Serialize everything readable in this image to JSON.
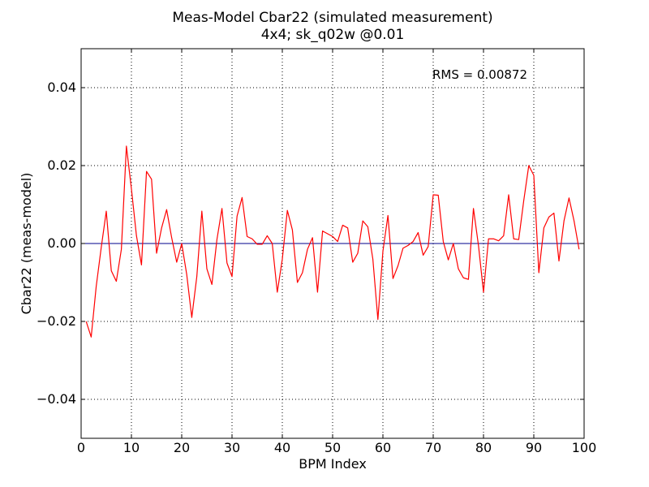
{
  "chart_data": {
    "type": "line",
    "title": "Meas-Model Cbar22 (simulated measurement)",
    "subtitle": "4x4; sk_q02w @0.01",
    "xlabel": "BPM Index",
    "ylabel": "Cbar22 (meas-model)",
    "xlim": [
      0,
      100
    ],
    "ylim": [
      -0.05,
      0.05
    ],
    "x_ticks": [
      0,
      10,
      20,
      30,
      40,
      50,
      60,
      70,
      80,
      90,
      100
    ],
    "x_tick_labels": [
      "0",
      "10",
      "20",
      "30",
      "40",
      "50",
      "60",
      "70",
      "80",
      "90",
      "100"
    ],
    "y_ticks": [
      -0.04,
      -0.02,
      0.0,
      0.02,
      0.04
    ],
    "y_tick_labels": [
      "−0.04",
      "−0.02",
      "0.00",
      "0.02",
      "0.04"
    ],
    "grid": true,
    "grid_style": "dotted",
    "annotation": "RMS = 0.00872",
    "reference_line": {
      "y": 0,
      "color": "#00008b"
    },
    "series": [
      {
        "color": "#ff0000",
        "x": [
          1,
          2,
          3,
          4,
          5,
          6,
          7,
          8,
          9,
          10,
          11,
          12,
          13,
          14,
          15,
          16,
          17,
          18,
          19,
          20,
          21,
          22,
          23,
          24,
          25,
          26,
          27,
          28,
          29,
          30,
          31,
          32,
          33,
          34,
          35,
          36,
          37,
          38,
          39,
          40,
          41,
          42,
          43,
          44,
          45,
          46,
          47,
          48,
          49,
          50,
          51,
          52,
          53,
          54,
          55,
          56,
          57,
          58,
          59,
          60,
          61,
          62,
          63,
          64,
          65,
          66,
          67,
          68,
          69,
          70,
          71,
          72,
          73,
          74,
          75,
          76,
          77,
          78,
          79,
          80,
          81,
          82,
          83,
          84,
          85,
          86,
          87,
          88,
          89,
          90,
          91,
          92,
          93,
          94,
          95,
          96,
          97,
          98,
          99
        ],
        "values": [
          -0.02,
          -0.024,
          -0.011,
          -0.001,
          0.0083,
          -0.007,
          -0.0097,
          -0.0015,
          0.025,
          0.014,
          0.002,
          -0.0055,
          0.0185,
          0.0165,
          -0.0025,
          0.004,
          0.0087,
          0.0015,
          -0.0048,
          0.0,
          -0.008,
          -0.019,
          -0.0085,
          0.0083,
          -0.0065,
          -0.0105,
          0.001,
          0.009,
          -0.005,
          -0.0085,
          0.007,
          0.0118,
          0.0018,
          0.0012,
          -0.0002,
          -0.0002,
          0.002,
          0.0,
          -0.0125,
          -0.004,
          0.0085,
          0.0035,
          -0.01,
          -0.0075,
          -0.0015,
          0.0015,
          -0.0125,
          0.0032,
          0.0025,
          0.0018,
          0.0005,
          0.0047,
          0.004,
          -0.0048,
          -0.0025,
          0.0058,
          0.0043,
          -0.004,
          -0.0195,
          -0.002,
          0.0072,
          -0.009,
          -0.0057,
          -0.0012,
          -0.0005,
          0.0005,
          0.0028,
          -0.003,
          -0.0008,
          0.0125,
          0.0124,
          0.0005,
          -0.0042,
          0.0,
          -0.0065,
          -0.0088,
          -0.0092,
          0.009,
          -0.0005,
          -0.0125,
          0.0012,
          0.0012,
          0.0007,
          0.002,
          0.0125,
          0.0012,
          0.001,
          0.011,
          0.02,
          0.0175,
          -0.0075,
          0.004,
          0.0068,
          0.0078,
          -0.0045,
          0.0058,
          0.0117,
          0.0058,
          -0.0015
        ]
      }
    ]
  }
}
